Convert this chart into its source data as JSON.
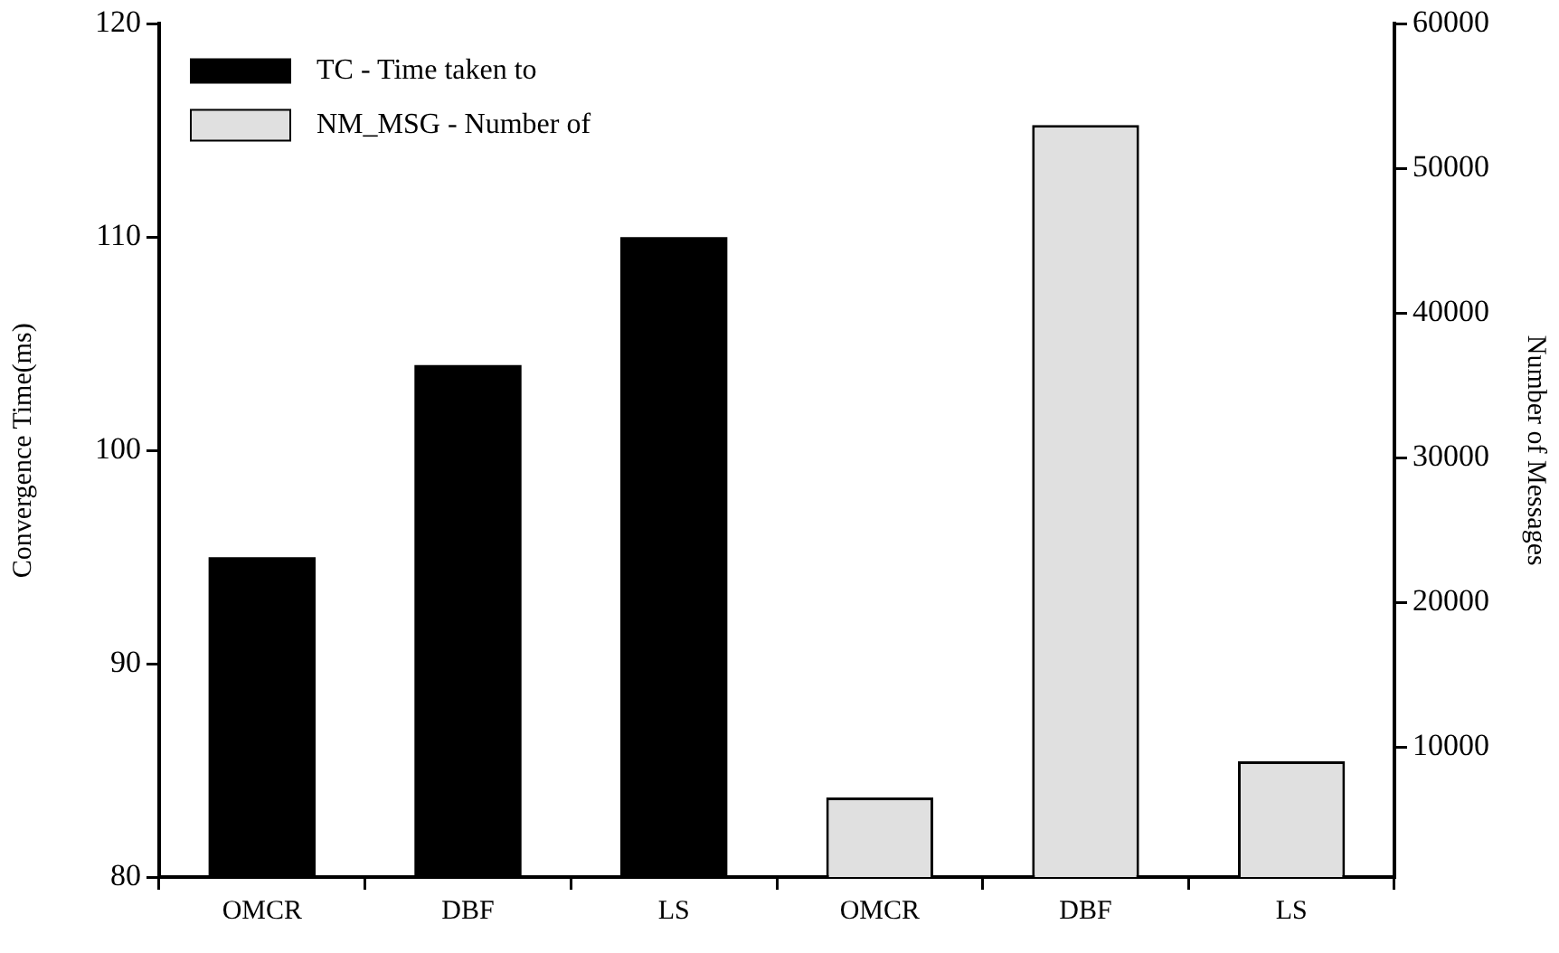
{
  "chart_data": {
    "type": "bar",
    "categories": [
      "OMCR",
      "DBF",
      "LS",
      "OMCR",
      "DBF",
      "LS"
    ],
    "ylabel": "Convergence Time(ms)",
    "y2label": "Number of Messages",
    "series": [
      {
        "name": "TC - Time taken to",
        "color": "#000000",
        "values": [
          95,
          104,
          110,
          null,
          null,
          null
        ]
      },
      {
        "name": "NM_MSG - Number of",
        "color": "#e0e0e0",
        "axis": "y2",
        "values": [
          null,
          null,
          null,
          6500,
          53000,
          9000
        ]
      }
    ],
    "ylim": [
      80,
      120
    ],
    "yticks": [
      80,
      90,
      100,
      110,
      120
    ],
    "y2lim": [
      1000,
      60000
    ],
    "y2ticks": [
      10000,
      20000,
      30000,
      40000,
      50000,
      60000
    ],
    "legend": "top left",
    "grid": false
  }
}
